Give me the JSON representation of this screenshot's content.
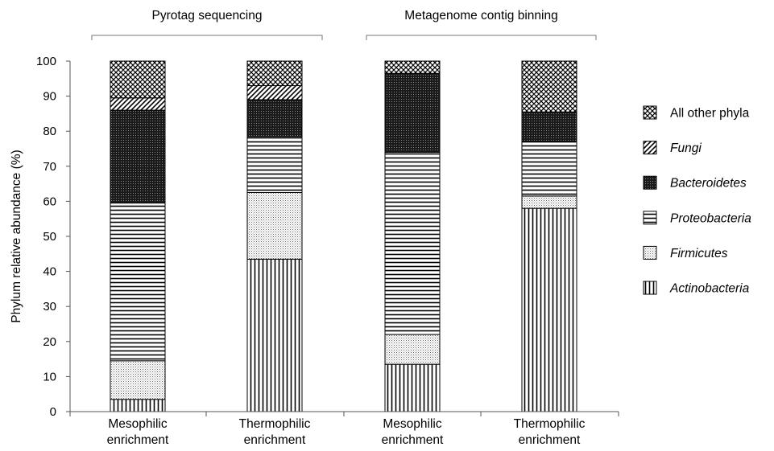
{
  "chart_data": {
    "type": "bar",
    "stacked": true,
    "ylabel": "Phylum relative abundance (%)",
    "ylim": [
      0,
      100
    ],
    "yticks": [
      0,
      10,
      20,
      30,
      40,
      50,
      60,
      70,
      80,
      90,
      100
    ],
    "groups": [
      {
        "label": "Pyrotag sequencing",
        "categories": [
          0,
          1
        ]
      },
      {
        "label": "Metagenome contig binning",
        "categories": [
          2,
          3
        ]
      }
    ],
    "categories": [
      [
        "Mesophilic",
        "enrichment"
      ],
      [
        "Thermophilic",
        "enrichment"
      ],
      [
        "Mesophilic",
        "enrichment"
      ],
      [
        "Thermophilic",
        "enrichment"
      ]
    ],
    "series": [
      {
        "name": "Actinobacteria",
        "italic": true,
        "pattern": "vertical-lines",
        "values": [
          3.5,
          43.5,
          13.5,
          58
        ]
      },
      {
        "name": "Firmicutes",
        "italic": true,
        "pattern": "fine-dots",
        "values": [
          11,
          19,
          8.5,
          3.5
        ]
      },
      {
        "name": "Proteobacteria",
        "italic": true,
        "pattern": "horizontal-lines",
        "values": [
          45,
          16,
          52,
          15.5
        ]
      },
      {
        "name": "Bacteroidetes",
        "italic": true,
        "pattern": "dense-dots",
        "values": [
          26.5,
          10.5,
          22.5,
          8.5
        ]
      },
      {
        "name": "Fungi",
        "italic": true,
        "pattern": "diagonal-lines",
        "values": [
          3.5,
          4,
          0,
          0
        ]
      },
      {
        "name": "All other phyla",
        "italic": false,
        "pattern": "crosshatch",
        "values": [
          10.5,
          7,
          3.5,
          14.5
        ]
      }
    ],
    "legend_position": "right",
    "legend_order": [
      5,
      4,
      3,
      2,
      1,
      0
    ],
    "grid": false
  }
}
